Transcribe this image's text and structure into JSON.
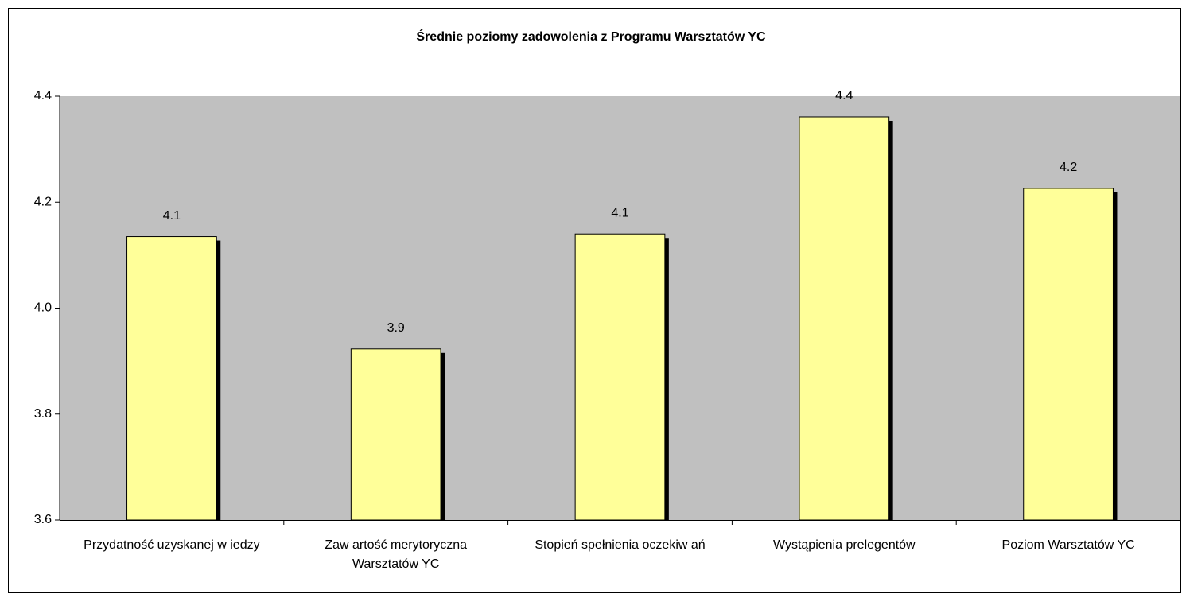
{
  "chart_data": {
    "type": "bar",
    "title": "Średnie poziomy  zadowolenia z Programu Warsztatów  YC",
    "categories": [
      "Przydatność uzyskanej w iedzy",
      "Zaw artość merytoryczna\nWarsztatów  YC",
      "Stopień spełnienia oczekiw ań",
      "Wystąpienia prelegentów",
      "Poziom Warsztatów  YC"
    ],
    "values": [
      4.135,
      3.923,
      4.14,
      4.361,
      4.226
    ],
    "value_labels": [
      "4.1",
      "3.9",
      "4.1",
      "4.4",
      "4.2"
    ],
    "color": "#ffff99",
    "ylim": [
      3.6,
      4.4
    ],
    "yticks": [
      3.6,
      3.8,
      {
        "value": 4,
        "label": "4.0"
      },
      4.2,
      4.4
    ],
    "grid": false
  }
}
